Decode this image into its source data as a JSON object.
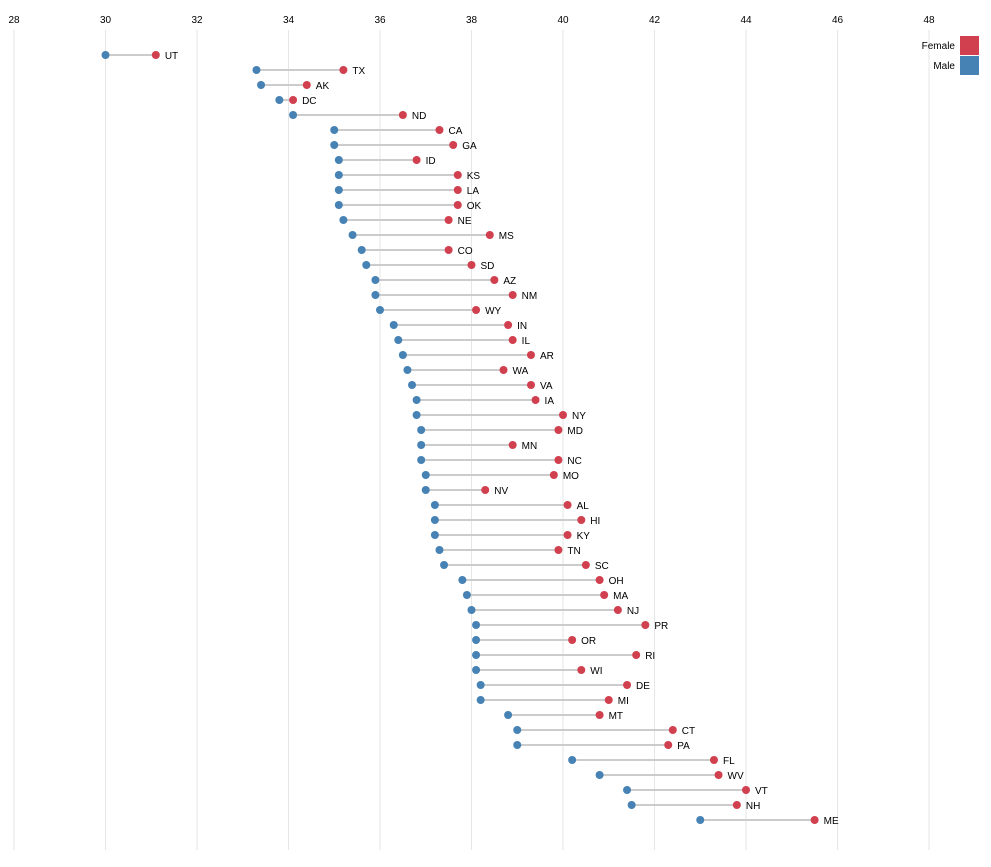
{
  "chart_data": {
    "type": "dumbbell",
    "x_ticks": [
      28,
      30,
      32,
      34,
      36,
      38,
      40,
      42,
      44,
      46,
      48
    ],
    "xlim": [
      28,
      48
    ],
    "grid": true,
    "legend_position": "top-right",
    "colors": {
      "female": "#d1404f",
      "male": "#4682b4"
    },
    "series": [
      {
        "name": "Female",
        "key": "female"
      },
      {
        "name": "Male",
        "key": "male"
      }
    ],
    "rows": [
      {
        "state": "UT",
        "male": 30.0,
        "female": 31.1
      },
      {
        "state": "TX",
        "male": 33.3,
        "female": 35.2
      },
      {
        "state": "AK",
        "male": 33.4,
        "female": 34.4
      },
      {
        "state": "DC",
        "male": 33.8,
        "female": 34.1
      },
      {
        "state": "ND",
        "male": 34.1,
        "female": 36.5
      },
      {
        "state": "CA",
        "male": 35.0,
        "female": 37.3
      },
      {
        "state": "GA",
        "male": 35.0,
        "female": 37.6
      },
      {
        "state": "ID",
        "male": 35.1,
        "female": 36.8
      },
      {
        "state": "KS",
        "male": 35.1,
        "female": 37.7
      },
      {
        "state": "LA",
        "male": 35.1,
        "female": 37.7
      },
      {
        "state": "OK",
        "male": 35.1,
        "female": 37.7
      },
      {
        "state": "NE",
        "male": 35.2,
        "female": 37.5
      },
      {
        "state": "MS",
        "male": 35.4,
        "female": 38.4
      },
      {
        "state": "CO",
        "male": 35.6,
        "female": 37.5
      },
      {
        "state": "SD",
        "male": 35.7,
        "female": 38.0
      },
      {
        "state": "AZ",
        "male": 35.9,
        "female": 38.5
      },
      {
        "state": "NM",
        "male": 35.9,
        "female": 38.9
      },
      {
        "state": "WY",
        "male": 36.0,
        "female": 38.1
      },
      {
        "state": "IN",
        "male": 36.3,
        "female": 38.8
      },
      {
        "state": "IL",
        "male": 36.4,
        "female": 38.9
      },
      {
        "state": "AR",
        "male": 36.5,
        "female": 39.3
      },
      {
        "state": "WA",
        "male": 36.6,
        "female": 38.7
      },
      {
        "state": "VA",
        "male": 36.7,
        "female": 39.3
      },
      {
        "state": "IA",
        "male": 36.8,
        "female": 39.4
      },
      {
        "state": "NY",
        "male": 36.8,
        "female": 40.0
      },
      {
        "state": "MD",
        "male": 36.9,
        "female": 39.9
      },
      {
        "state": "MN",
        "male": 36.9,
        "female": 38.9
      },
      {
        "state": "NC",
        "male": 36.9,
        "female": 39.9
      },
      {
        "state": "MO",
        "male": 37.0,
        "female": 39.8
      },
      {
        "state": "NV",
        "male": 37.0,
        "female": 38.3
      },
      {
        "state": "AL",
        "male": 37.2,
        "female": 40.1
      },
      {
        "state": "HI",
        "male": 37.2,
        "female": 40.4
      },
      {
        "state": "KY",
        "male": 37.2,
        "female": 40.1
      },
      {
        "state": "TN",
        "male": 37.3,
        "female": 39.9
      },
      {
        "state": "SC",
        "male": 37.4,
        "female": 40.5
      },
      {
        "state": "OH",
        "male": 37.8,
        "female": 40.8
      },
      {
        "state": "MA",
        "male": 37.9,
        "female": 40.9
      },
      {
        "state": "NJ",
        "male": 38.0,
        "female": 41.2
      },
      {
        "state": "PR",
        "male": 38.1,
        "female": 41.8
      },
      {
        "state": "OR",
        "male": 38.1,
        "female": 40.2
      },
      {
        "state": "RI",
        "male": 38.1,
        "female": 41.6
      },
      {
        "state": "WI",
        "male": 38.1,
        "female": 40.4
      },
      {
        "state": "DE",
        "male": 38.2,
        "female": 41.4
      },
      {
        "state": "MI",
        "male": 38.2,
        "female": 41.0
      },
      {
        "state": "MT",
        "male": 38.8,
        "female": 40.8
      },
      {
        "state": "CT",
        "male": 39.0,
        "female": 42.4
      },
      {
        "state": "PA",
        "male": 39.0,
        "female": 42.3
      },
      {
        "state": "FL",
        "male": 40.2,
        "female": 43.3
      },
      {
        "state": "WV",
        "male": 40.8,
        "female": 43.4
      },
      {
        "state": "VT",
        "male": 41.4,
        "female": 44.0
      },
      {
        "state": "NH",
        "male": 41.5,
        "female": 43.8
      },
      {
        "state": "ME",
        "male": 43.0,
        "female": 45.5
      }
    ]
  }
}
